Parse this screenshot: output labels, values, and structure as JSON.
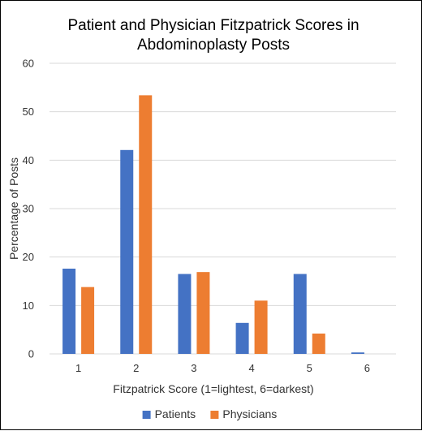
{
  "chart_data": {
    "type": "bar",
    "title_lines": [
      "Patient and Physician Fitzpatrick Scores in",
      "Abdominoplasty Posts"
    ],
    "xlabel": "Fitzpatrick Score (1=lightest, 6=darkest)",
    "ylabel": "Percentage of Posts",
    "categories": [
      "1",
      "2",
      "3",
      "4",
      "5",
      "6"
    ],
    "ylim": [
      0,
      60
    ],
    "yticks": [
      0,
      10,
      20,
      30,
      40,
      50,
      60
    ],
    "grid": true,
    "legend_position": "bottom",
    "series": [
      {
        "name": "Patients",
        "color": "#4472C4",
        "values": [
          17.6,
          42.1,
          16.5,
          6.4,
          16.5,
          0.3
        ]
      },
      {
        "name": "Physicians",
        "color": "#ED7D31",
        "values": [
          13.8,
          53.4,
          16.9,
          11.0,
          4.2,
          0
        ]
      }
    ]
  }
}
